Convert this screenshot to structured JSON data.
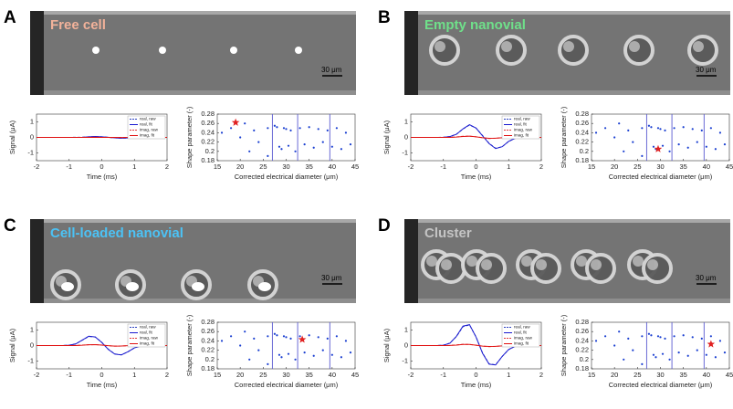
{
  "panels": [
    {
      "letter": "A",
      "label": "Free cell",
      "label_color": "#f2b29a",
      "scale_bar": "30 μm"
    },
    {
      "letter": "B",
      "label": "Empty nanovial",
      "label_color": "#6fe08a",
      "scale_bar": "30 μm"
    },
    {
      "letter": "C",
      "label": "Cell-loaded nanovial",
      "label_color": "#4cc2f5",
      "scale_bar": "30 μm"
    },
    {
      "letter": "D",
      "label": "Cluster",
      "label_color": "#c4c4c4",
      "scale_bar": "30 μm"
    }
  ],
  "chart_data": [
    {
      "type": "line",
      "x_label": "Time (ms)",
      "y_label": "Signal (μA)",
      "xlim": [
        -2,
        2
      ],
      "xticks": [
        -2,
        -1,
        0,
        1,
        2
      ],
      "ylim": [
        -1.5,
        1.5
      ],
      "yticks": [
        -1,
        0,
        1
      ],
      "x": [
        -2,
        -1.8,
        -1.6,
        -1.4,
        -1.2,
        -1,
        -0.8,
        -0.6,
        -0.4,
        -0.2,
        0,
        0.2,
        0.4,
        0.6,
        0.8,
        1,
        1.2,
        1.4,
        1.6,
        1.8,
        2
      ],
      "series": [
        {
          "name": "real, raw",
          "color": "#2a3fc0",
          "style": "dashed",
          "values": [
            0,
            0,
            0,
            0,
            0,
            0,
            0.01,
            0.01,
            0.04,
            0.05,
            0.04,
            0,
            -0.03,
            -0.05,
            -0.04,
            -0.02,
            0,
            0,
            0,
            0,
            0
          ]
        },
        {
          "name": "real, fit",
          "color": "#1a1ad0",
          "style": "solid",
          "values": [
            0,
            0,
            0,
            0,
            0,
            0,
            0,
            0.01,
            0.04,
            0.06,
            0.04,
            0.01,
            -0.03,
            -0.05,
            -0.04,
            -0.02,
            0,
            0,
            0,
            0,
            0
          ]
        },
        {
          "name": "imag, raw",
          "color": "#e03a3a",
          "style": "dashed",
          "values": [
            0,
            0,
            0,
            0,
            0,
            0,
            0,
            0,
            0.01,
            0.01,
            0,
            0,
            -0.01,
            -0.01,
            0,
            0,
            0,
            0,
            0,
            0,
            0
          ]
        },
        {
          "name": "imag, fit",
          "color": "#e01010",
          "style": "solid",
          "values": [
            0,
            0,
            0,
            0,
            0,
            0,
            0,
            0,
            0,
            0.01,
            0,
            0,
            0,
            -0.01,
            0,
            0,
            0,
            0,
            0,
            0,
            0
          ]
        }
      ]
    },
    {
      "type": "scatter",
      "x_label": "Corrected electrical diameter (μm)",
      "y_label": "Shape parameter (-)",
      "xlim": [
        15,
        45
      ],
      "xticks": [
        15,
        20,
        25,
        30,
        35,
        40,
        45
      ],
      "ylim": [
        0.18,
        0.28
      ],
      "yticks": [
        0.18,
        0.2,
        0.22,
        0.24,
        0.26,
        0.28
      ],
      "color": "#1a3fd1",
      "x": [
        16,
        18,
        20,
        21,
        23,
        24,
        26,
        27.5,
        28,
        28.5,
        29,
        29.5,
        30,
        30.5,
        31,
        32,
        33,
        34,
        35,
        36,
        37,
        38,
        39,
        40,
        41,
        42,
        43,
        44,
        26,
        22
      ],
      "values": [
        0.24,
        0.25,
        0.23,
        0.26,
        0.245,
        0.22,
        0.25,
        0.255,
        0.252,
        0.21,
        0.205,
        0.25,
        0.248,
        0.212,
        0.245,
        0.2,
        0.25,
        0.215,
        0.252,
        0.208,
        0.248,
        0.22,
        0.245,
        0.21,
        0.25,
        0.205,
        0.24,
        0.215,
        0.19,
        0.2
      ],
      "vlines": [
        27,
        32.5,
        39.5
      ],
      "vline_color": "#5a5ad0",
      "star": {
        "x": 19,
        "y": 0.262,
        "color": "#e02020"
      }
    },
    {
      "type": "line",
      "x_label": "Time (ms)",
      "y_label": "Signal (μA)",
      "xlim": [
        -2,
        2
      ],
      "xticks": [
        -2,
        -1,
        0,
        1,
        2
      ],
      "ylim": [
        -1.5,
        1.5
      ],
      "yticks": [
        -1,
        0,
        1
      ],
      "x": [
        -2,
        -1.8,
        -1.6,
        -1.4,
        -1.2,
        -1,
        -0.8,
        -0.6,
        -0.4,
        -0.2,
        0,
        0.2,
        0.4,
        0.6,
        0.8,
        1,
        1.2,
        1.4,
        1.6,
        1.8,
        2
      ],
      "series": [
        {
          "name": "real, raw",
          "color": "#2a3fc0",
          "style": "dashed",
          "values": [
            0,
            0,
            0,
            0,
            0,
            0.01,
            0.06,
            0.21,
            0.54,
            0.8,
            0.6,
            0.12,
            -0.38,
            -0.7,
            -0.6,
            -0.26,
            -0.06,
            -0.01,
            0,
            0,
            0
          ]
        },
        {
          "name": "real, fit",
          "color": "#1a1ad0",
          "style": "solid",
          "values": [
            0,
            0,
            0,
            0,
            0,
            0.01,
            0.05,
            0.2,
            0.55,
            0.82,
            0.6,
            0.1,
            -0.4,
            -0.72,
            -0.6,
            -0.25,
            -0.06,
            -0.01,
            0,
            0,
            0
          ]
        },
        {
          "name": "imag, raw",
          "color": "#e03a3a",
          "style": "dashed",
          "values": [
            0,
            0,
            0,
            0,
            0,
            0,
            0.01,
            0.03,
            0.07,
            0.08,
            0.04,
            -0.02,
            -0.07,
            -0.05,
            -0.02,
            0,
            0,
            0,
            0,
            0,
            0
          ]
        },
        {
          "name": "imag, fit",
          "color": "#e01010",
          "style": "solid",
          "values": [
            0,
            0,
            0,
            0,
            0,
            0,
            0,
            0.02,
            0.06,
            0.08,
            0.04,
            -0.02,
            -0.06,
            -0.05,
            -0.02,
            0,
            0,
            0,
            0,
            0,
            0
          ]
        }
      ]
    },
    {
      "type": "scatter",
      "x_label": "Corrected electrical diameter (μm)",
      "y_label": "Shape parameter (-)",
      "xlim": [
        15,
        45
      ],
      "xticks": [
        15,
        20,
        25,
        30,
        35,
        40,
        45
      ],
      "ylim": [
        0.18,
        0.28
      ],
      "yticks": [
        0.18,
        0.2,
        0.22,
        0.24,
        0.26,
        0.28
      ],
      "color": "#1a3fd1",
      "x": [
        16,
        18,
        20,
        21,
        23,
        24,
        26,
        27.5,
        28,
        28.5,
        29,
        29.5,
        30,
        30.5,
        31,
        32,
        33,
        34,
        35,
        36,
        37,
        38,
        39,
        40,
        41,
        42,
        43,
        44,
        26,
        22
      ],
      "values": [
        0.24,
        0.25,
        0.23,
        0.26,
        0.245,
        0.22,
        0.25,
        0.255,
        0.252,
        0.21,
        0.205,
        0.25,
        0.248,
        0.212,
        0.245,
        0.2,
        0.25,
        0.215,
        0.252,
        0.208,
        0.248,
        0.22,
        0.245,
        0.21,
        0.25,
        0.205,
        0.24,
        0.215,
        0.19,
        0.2
      ],
      "vlines": [
        27,
        32.5,
        39.5
      ],
      "vline_color": "#5a5ad0",
      "star": {
        "x": 29.5,
        "y": 0.205,
        "color": "#e02020"
      }
    },
    {
      "type": "line",
      "x_label": "Time (ms)",
      "y_label": "Signal (μA)",
      "xlim": [
        -2,
        2
      ],
      "xticks": [
        -2,
        -1,
        0,
        1,
        2
      ],
      "ylim": [
        -1.5,
        1.5
      ],
      "yticks": [
        -1,
        0,
        1
      ],
      "x": [
        -2,
        -1.8,
        -1.6,
        -1.4,
        -1.2,
        -1,
        -0.8,
        -0.6,
        -0.4,
        -0.2,
        0,
        0.2,
        0.4,
        0.6,
        0.8,
        1,
        1.2,
        1.4,
        1.6,
        1.8,
        2
      ],
      "series": [
        {
          "name": "real, raw",
          "color": "#2a3fc0",
          "style": "dashed",
          "values": [
            0,
            0,
            0,
            0,
            0,
            0.02,
            0.11,
            0.34,
            0.58,
            0.55,
            0.21,
            -0.24,
            -0.54,
            -0.6,
            -0.41,
            -0.15,
            -0.03,
            0,
            0,
            0,
            0
          ]
        },
        {
          "name": "real, fit",
          "color": "#1a1ad0",
          "style": "solid",
          "values": [
            0,
            0,
            0,
            0,
            0,
            0.02,
            0.1,
            0.35,
            0.6,
            0.55,
            0.2,
            -0.25,
            -0.55,
            -0.6,
            -0.4,
            -0.15,
            -0.03,
            0,
            0,
            0,
            0
          ]
        },
        {
          "name": "imag, raw",
          "color": "#e03a3a",
          "style": "dashed",
          "values": [
            0,
            0,
            0,
            0,
            0,
            0,
            0.01,
            0.03,
            0.05,
            0.06,
            0.03,
            -0.01,
            -0.04,
            -0.03,
            -0.01,
            0,
            0,
            0,
            0,
            0,
            0
          ]
        },
        {
          "name": "imag, fit",
          "color": "#e01010",
          "style": "solid",
          "values": [
            0,
            0,
            0,
            0,
            0,
            0,
            0,
            0.02,
            0.05,
            0.06,
            0.03,
            -0.01,
            -0.04,
            -0.03,
            -0.01,
            0,
            0,
            0,
            0,
            0,
            0
          ]
        }
      ]
    },
    {
      "type": "scatter",
      "x_label": "Corrected electrical diameter (μm)",
      "y_label": "Shape parameter (-)",
      "xlim": [
        15,
        45
      ],
      "xticks": [
        15,
        20,
        25,
        30,
        35,
        40,
        45
      ],
      "ylim": [
        0.18,
        0.28
      ],
      "yticks": [
        0.18,
        0.2,
        0.22,
        0.24,
        0.26,
        0.28
      ],
      "color": "#1a3fd1",
      "x": [
        16,
        18,
        20,
        21,
        23,
        24,
        26,
        27.5,
        28,
        28.5,
        29,
        29.5,
        30,
        30.5,
        31,
        32,
        33,
        34,
        35,
        36,
        37,
        38,
        39,
        40,
        41,
        42,
        43,
        44,
        26,
        22
      ],
      "values": [
        0.24,
        0.25,
        0.23,
        0.26,
        0.245,
        0.22,
        0.25,
        0.255,
        0.252,
        0.21,
        0.205,
        0.25,
        0.248,
        0.212,
        0.245,
        0.2,
        0.25,
        0.215,
        0.252,
        0.208,
        0.248,
        0.22,
        0.245,
        0.21,
        0.25,
        0.205,
        0.24,
        0.215,
        0.19,
        0.2
      ],
      "vlines": [
        27,
        32.5,
        39.5
      ],
      "vline_color": "#5a5ad0",
      "star": {
        "x": 33.5,
        "y": 0.243,
        "color": "#e02020"
      }
    },
    {
      "type": "line",
      "x_label": "Time (ms)",
      "y_label": "Signal (μA)",
      "xlim": [
        -2,
        2
      ],
      "xticks": [
        -2,
        -1,
        0,
        1,
        2
      ],
      "ylim": [
        -1.5,
        1.5
      ],
      "yticks": [
        -1,
        0,
        1
      ],
      "x": [
        -2,
        -1.8,
        -1.6,
        -1.4,
        -1.2,
        -1,
        -0.8,
        -0.6,
        -0.4,
        -0.2,
        0,
        0.2,
        0.4,
        0.6,
        0.8,
        1,
        1.2,
        1.4,
        1.6,
        1.8,
        2
      ],
      "series": [
        {
          "name": "real, raw",
          "color": "#2a3fc0",
          "style": "dashed",
          "values": [
            0,
            0,
            0,
            0,
            0,
            0.02,
            0.16,
            0.58,
            1.22,
            1.33,
            0.56,
            -0.48,
            -1.18,
            -1.24,
            -0.71,
            -0.26,
            -0.05,
            0,
            0,
            0,
            0
          ]
        },
        {
          "name": "real, fit",
          "color": "#1a1ad0",
          "style": "solid",
          "values": [
            0,
            0,
            0,
            0,
            0,
            0.02,
            0.15,
            0.6,
            1.25,
            1.35,
            0.55,
            -0.5,
            -1.2,
            -1.25,
            -0.7,
            -0.25,
            -0.05,
            0,
            0,
            0,
            0
          ]
        },
        {
          "name": "imag, raw",
          "color": "#e03a3a",
          "style": "dashed",
          "values": [
            0,
            0,
            0,
            0,
            0,
            0,
            0.01,
            0.04,
            0.08,
            0.07,
            0.02,
            -0.04,
            -0.07,
            -0.05,
            -0.02,
            0,
            0,
            0,
            0,
            0,
            0
          ]
        },
        {
          "name": "imag, fit",
          "color": "#e01010",
          "style": "solid",
          "values": [
            0,
            0,
            0,
            0,
            0,
            0,
            0.01,
            0.03,
            0.07,
            0.07,
            0.02,
            -0.04,
            -0.06,
            -0.05,
            -0.02,
            0,
            0,
            0,
            0,
            0,
            0
          ]
        }
      ]
    },
    {
      "type": "scatter",
      "x_label": "Corrected electrical diameter (μm)",
      "y_label": "Shape parameter (-)",
      "xlim": [
        15,
        45
      ],
      "xticks": [
        15,
        20,
        25,
        30,
        35,
        40,
        45
      ],
      "ylim": [
        0.18,
        0.28
      ],
      "yticks": [
        0.18,
        0.2,
        0.22,
        0.24,
        0.26,
        0.28
      ],
      "color": "#1a3fd1",
      "x": [
        16,
        18,
        20,
        21,
        23,
        24,
        26,
        27.5,
        28,
        28.5,
        29,
        29.5,
        30,
        30.5,
        31,
        32,
        33,
        34,
        35,
        36,
        37,
        38,
        39,
        40,
        41,
        42,
        43,
        44,
        26,
        22
      ],
      "values": [
        0.24,
        0.25,
        0.23,
        0.26,
        0.245,
        0.22,
        0.25,
        0.255,
        0.252,
        0.21,
        0.205,
        0.25,
        0.248,
        0.212,
        0.245,
        0.2,
        0.25,
        0.215,
        0.252,
        0.208,
        0.248,
        0.22,
        0.245,
        0.21,
        0.25,
        0.205,
        0.24,
        0.215,
        0.19,
        0.2
      ],
      "vlines": [
        27,
        32.5,
        39.5
      ],
      "vline_color": "#5a5ad0",
      "star": {
        "x": 41,
        "y": 0.233,
        "color": "#e02020"
      }
    }
  ]
}
